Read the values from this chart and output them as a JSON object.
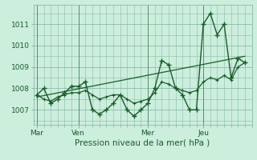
{
  "bg_color": "#cceedd",
  "grid_color": "#88bbaa",
  "line_color": "#1a5c2a",
  "xlabel": "Pression niveau de la mer( hPa )",
  "ylim": [
    1006.3,
    1011.9
  ],
  "yticks": [
    1007,
    1008,
    1009,
    1010,
    1011
  ],
  "day_labels": [
    "Mar",
    "Ven",
    "Mer",
    "Jeu"
  ],
  "day_positions": [
    0,
    12,
    32,
    48
  ],
  "xlim": [
    -1,
    62
  ],
  "vline_positions": [
    0,
    12,
    32,
    48
  ],
  "series1_x": [
    0,
    2,
    4,
    6,
    8,
    10,
    12,
    14,
    16,
    18,
    20,
    22,
    24,
    26,
    28,
    30,
    32,
    34,
    36,
    38,
    40,
    42,
    44,
    46,
    48,
    50,
    52,
    54,
    56,
    58,
    60
  ],
  "series1_y": [
    1007.7,
    1008.0,
    1007.3,
    1007.5,
    1007.8,
    1008.1,
    1008.1,
    1008.3,
    1007.0,
    1006.8,
    1007.0,
    1007.3,
    1007.7,
    1007.0,
    1006.7,
    1007.0,
    1007.3,
    1008.0,
    1009.3,
    1009.1,
    1008.0,
    1007.7,
    1007.0,
    1007.0,
    1011.0,
    1011.5,
    1010.5,
    1011.0,
    1008.5,
    1009.4,
    1009.2
  ],
  "series2_x": [
    0,
    2,
    4,
    6,
    8,
    10,
    12,
    14,
    16,
    18,
    20,
    22,
    24,
    26,
    28,
    30,
    32,
    34,
    36,
    38,
    40,
    42,
    44,
    46,
    48,
    50,
    52,
    54,
    56,
    58,
    60
  ],
  "series2_y": [
    1007.7,
    1007.5,
    1007.4,
    1007.6,
    1007.7,
    1007.8,
    1007.8,
    1007.9,
    1007.7,
    1007.5,
    1007.6,
    1007.7,
    1007.7,
    1007.5,
    1007.3,
    1007.4,
    1007.5,
    1007.8,
    1008.3,
    1008.2,
    1008.0,
    1007.9,
    1007.8,
    1007.9,
    1008.3,
    1008.5,
    1008.4,
    1008.6,
    1008.4,
    1009.0,
    1009.2
  ],
  "series3_x": [
    0,
    60
  ],
  "series3_y": [
    1007.6,
    1009.5
  ]
}
